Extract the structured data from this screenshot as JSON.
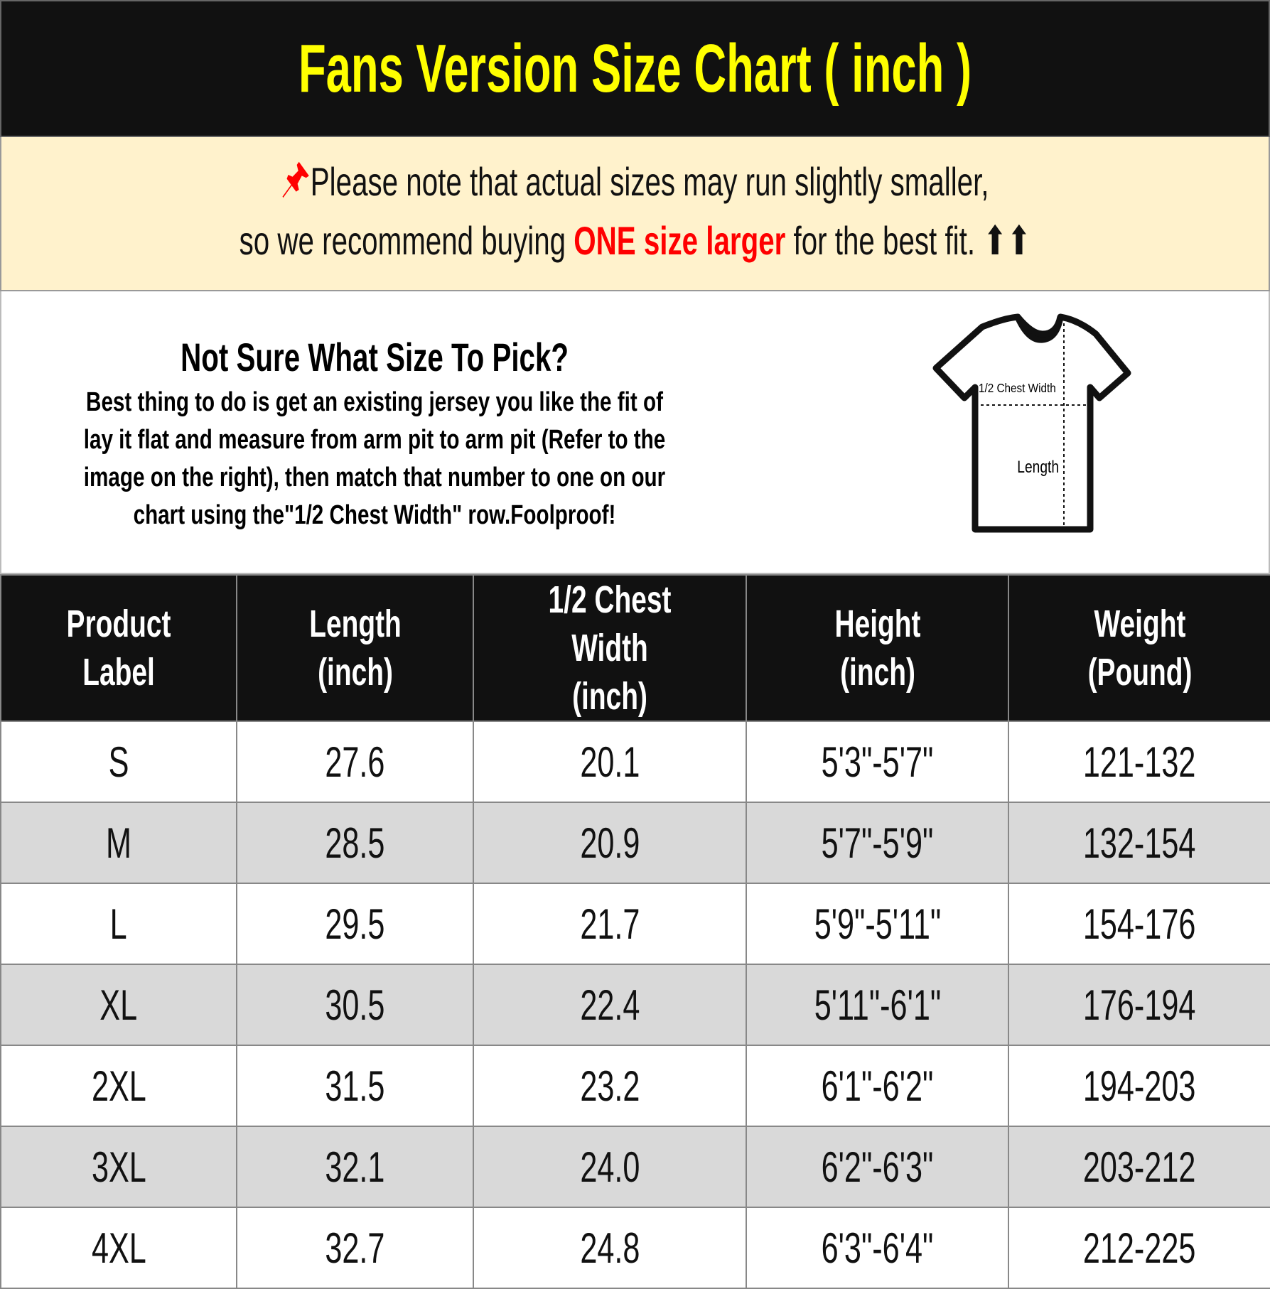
{
  "title": "Fans Version Size Chart ( inch )",
  "notice": {
    "line1": "Please note that actual sizes may run slightly smaller,",
    "line2_pre": "so we recommend buying ",
    "line2_highlight": "ONE size larger",
    "line2_post": " for the best fit. ⬆⬆",
    "pin_icon": "pushpin-icon",
    "highlight_color": "#ff0000"
  },
  "info": {
    "heading": "Not Sure What Size To Pick?",
    "body": "Best thing to do is get an existing jersey you like the fit of lay it flat and measure from arm pit to arm pit (Refer to the image on the right), then match that number to one on our chart using the\"1/2 Chest Width\" row.Foolproof!",
    "diagram": {
      "chest_label": "1/2 Chest Width",
      "length_label": "Length"
    }
  },
  "table": {
    "headers": [
      "Product Label",
      "Length (inch)",
      "1/2 Chest Width (inch)",
      "Height (inch)",
      "Weight (Pound)"
    ],
    "rows": [
      [
        "S",
        "27.6",
        "20.1",
        "5'3\"-5'7\"",
        "121-132"
      ],
      [
        "M",
        "28.5",
        "20.9",
        "5'7\"-5'9\"",
        "132-154"
      ],
      [
        "L",
        "29.5",
        "21.7",
        "5'9\"-5'11\"",
        "154-176"
      ],
      [
        "XL",
        "30.5",
        "22.4",
        "5'11\"-6'1\"",
        "176-194"
      ],
      [
        "2XL",
        "31.5",
        "23.2",
        "6'1\"-6'2\"",
        "194-203"
      ],
      [
        "3XL",
        "32.1",
        "24.0",
        "6'2\"-6'3\"",
        "203-212"
      ],
      [
        "4XL",
        "32.7",
        "24.8",
        "6'3\"-6'4\"",
        "212-225"
      ]
    ]
  }
}
